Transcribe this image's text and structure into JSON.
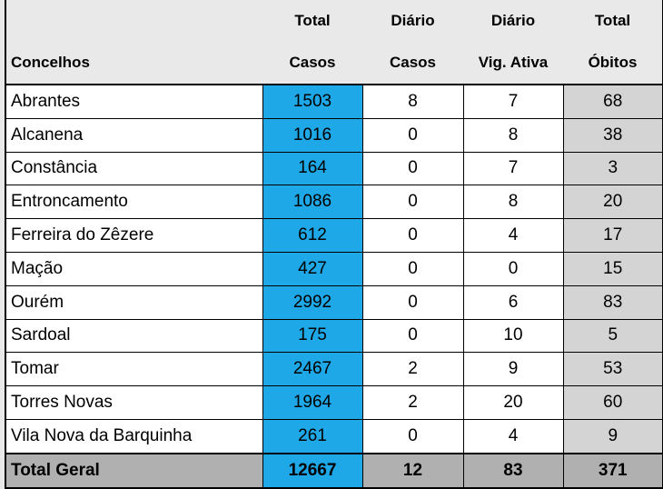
{
  "headers": {
    "row1": [
      "",
      "Total",
      "Diário",
      "Diário",
      "Total"
    ],
    "row2": [
      "Concelhos",
      "Casos",
      "Casos",
      "Vig. Ativa",
      "Óbitos"
    ]
  },
  "rows": [
    {
      "concelho": "Abrantes",
      "total_casos": "1503",
      "diario_casos": "8",
      "diario_vig_ativa": "7",
      "total_obitos": "68"
    },
    {
      "concelho": "Alcanena",
      "total_casos": "1016",
      "diario_casos": "0",
      "diario_vig_ativa": "8",
      "total_obitos": "38"
    },
    {
      "concelho": "Constância",
      "total_casos": "164",
      "diario_casos": "0",
      "diario_vig_ativa": "7",
      "total_obitos": "3"
    },
    {
      "concelho": "Entroncamento",
      "total_casos": "1086",
      "diario_casos": "0",
      "diario_vig_ativa": "8",
      "total_obitos": "20"
    },
    {
      "concelho": "Ferreira do Zêzere",
      "total_casos": "612",
      "diario_casos": "0",
      "diario_vig_ativa": "4",
      "total_obitos": "17"
    },
    {
      "concelho": "Mação",
      "total_casos": "427",
      "diario_casos": "0",
      "diario_vig_ativa": "0",
      "total_obitos": "15"
    },
    {
      "concelho": "Ourém",
      "total_casos": "2992",
      "diario_casos": "0",
      "diario_vig_ativa": "6",
      "total_obitos": "83"
    },
    {
      "concelho": "Sardoal",
      "total_casos": "175",
      "diario_casos": "0",
      "diario_vig_ativa": "10",
      "total_obitos": "5"
    },
    {
      "concelho": "Tomar",
      "total_casos": "2467",
      "diario_casos": "2",
      "diario_vig_ativa": "9",
      "total_obitos": "53"
    },
    {
      "concelho": "Torres Novas",
      "total_casos": "1964",
      "diario_casos": "2",
      "diario_vig_ativa": "20",
      "total_obitos": "60"
    },
    {
      "concelho": "Vila Nova da Barquinha",
      "total_casos": "261",
      "diario_casos": "0",
      "diario_vig_ativa": "4",
      "total_obitos": "9"
    }
  ],
  "total": {
    "label": "Total Geral",
    "total_casos": "12667",
    "diario_casos": "12",
    "diario_vig_ativa": "83",
    "total_obitos": "371"
  },
  "colors": {
    "casos": "#1ea8e8",
    "obitos": "#d4d4d4",
    "total_row": "#b0b0b0",
    "background": "#e9e9e9"
  }
}
